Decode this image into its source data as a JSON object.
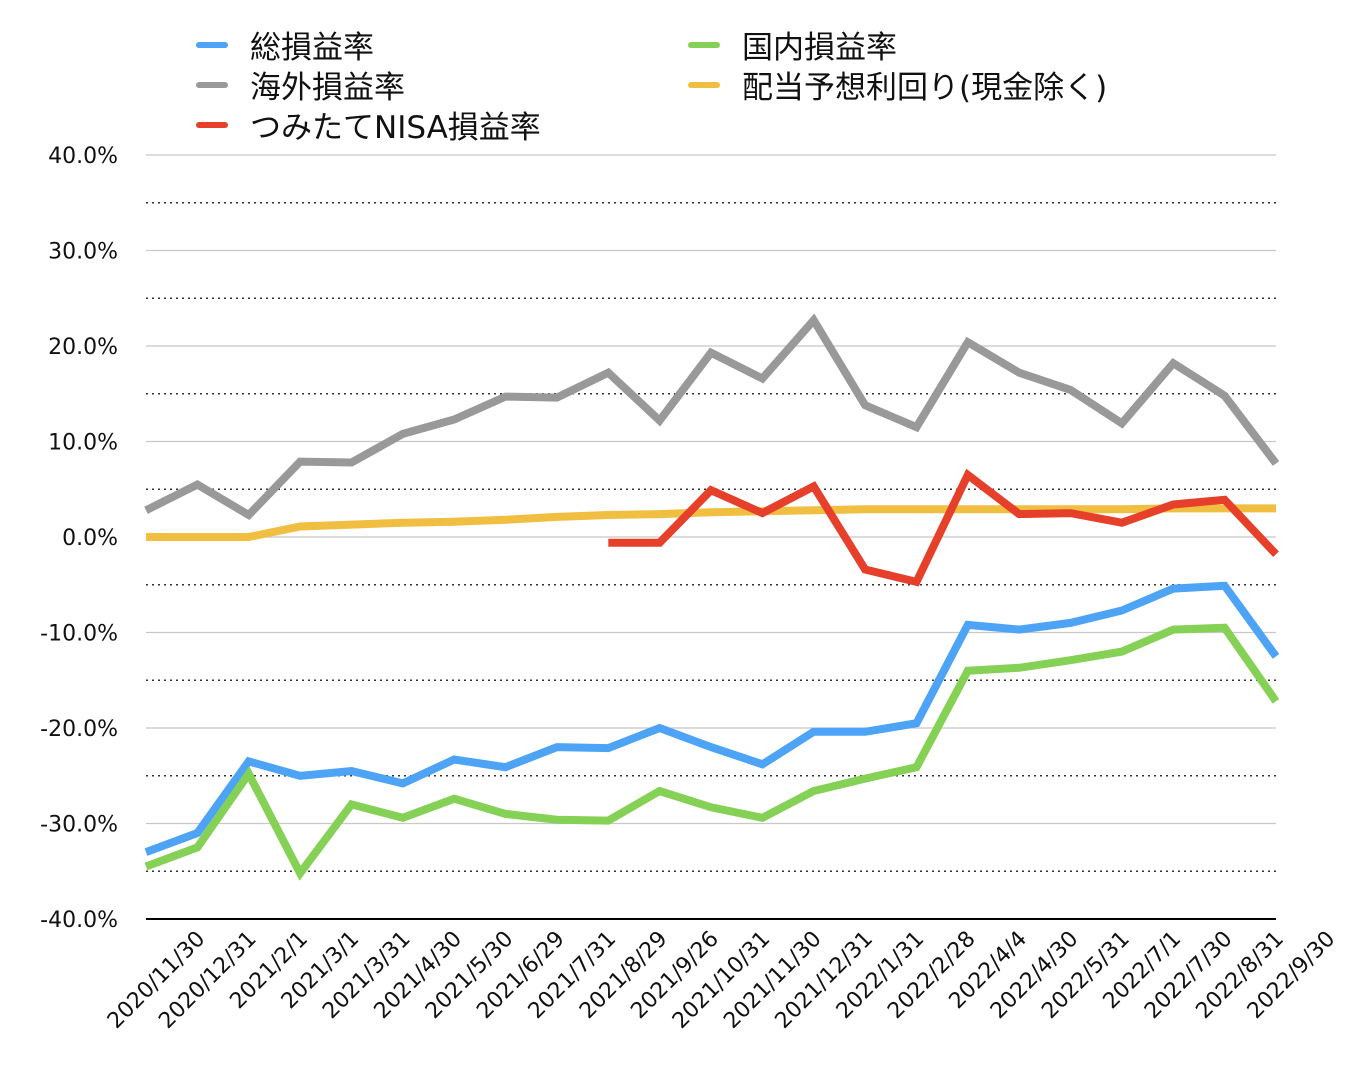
{
  "chart_data": {
    "type": "line",
    "title": "",
    "xlabel": "",
    "ylabel": "",
    "ylim": [
      -0.4,
      0.4
    ],
    "yticks": [
      "40.0%",
      "30.0%",
      "20.0%",
      "10.0%",
      "0.0%",
      "-10.0%",
      "-20.0%",
      "-30.0%",
      "-40.0%"
    ],
    "ytick_values": [
      0.4,
      0.3,
      0.2,
      0.1,
      0.0,
      -0.1,
      -0.2,
      -0.3,
      -0.4
    ],
    "grid": {
      "major": true,
      "minor_dotted": true
    },
    "legend_position": "top",
    "categories": [
      "2020/11/30",
      "2020/12/31",
      "2021/2/1",
      "2021/3/1",
      "2021/3/31",
      "2021/4/30",
      "2021/5/30",
      "2021/6/29",
      "2021/7/31",
      "2021/8/29",
      "2021/9/26",
      "2021/10/31",
      "2021/11/30",
      "2021/12/31",
      "2022/1/31",
      "2022/2/28",
      "2022/4/4",
      "2022/4/30",
      "2022/5/31",
      "2022/7/1",
      "2022/7/30",
      "2022/8/31",
      "2022/9/30"
    ],
    "series": [
      {
        "name": "総損益率",
        "color": "#4da3f5",
        "values": [
          -0.33,
          -0.31,
          -0.235,
          -0.25,
          -0.245,
          -0.258,
          -0.233,
          -0.241,
          -0.22,
          -0.221,
          -0.2,
          -0.22,
          -0.238,
          -0.204,
          -0.204,
          -0.195,
          -0.092,
          -0.097,
          -0.09,
          -0.077,
          -0.054,
          -0.051,
          -0.125
        ]
      },
      {
        "name": "国内損益率",
        "color": "#85d156",
        "values": [
          -0.345,
          -0.325,
          -0.248,
          -0.352,
          -0.28,
          -0.294,
          -0.274,
          -0.29,
          -0.296,
          -0.297,
          -0.266,
          -0.283,
          -0.294,
          -0.266,
          -0.253,
          -0.241,
          -0.14,
          -0.137,
          -0.129,
          -0.12,
          -0.097,
          -0.095,
          -0.172
        ]
      },
      {
        "name": "海外損益率",
        "color": "#999999",
        "values": [
          0.028,
          0.055,
          0.023,
          0.079,
          0.078,
          0.108,
          0.123,
          0.147,
          0.146,
          0.172,
          0.122,
          0.193,
          0.166,
          0.227,
          0.138,
          0.115,
          0.204,
          0.172,
          0.154,
          0.119,
          0.182,
          0.148,
          0.077
        ]
      },
      {
        "name": "配当予想利回り(現金除く)",
        "color": "#f0be40",
        "values": [
          0.0,
          0.0,
          0.0,
          0.011,
          0.013,
          0.015,
          0.016,
          0.018,
          0.021,
          0.023,
          0.024,
          0.026,
          0.027,
          0.028,
          0.029,
          0.029,
          0.029,
          0.029,
          0.029,
          0.029,
          0.03,
          0.03,
          0.03
        ]
      },
      {
        "name": "つみたてNISA損益率",
        "color": "#e6402a",
        "values": [
          null,
          null,
          null,
          null,
          null,
          null,
          null,
          null,
          null,
          -0.006,
          -0.006,
          0.049,
          0.025,
          0.053,
          -0.034,
          -0.047,
          0.065,
          0.024,
          0.025,
          0.015,
          0.034,
          0.039,
          -0.018
        ]
      }
    ]
  }
}
